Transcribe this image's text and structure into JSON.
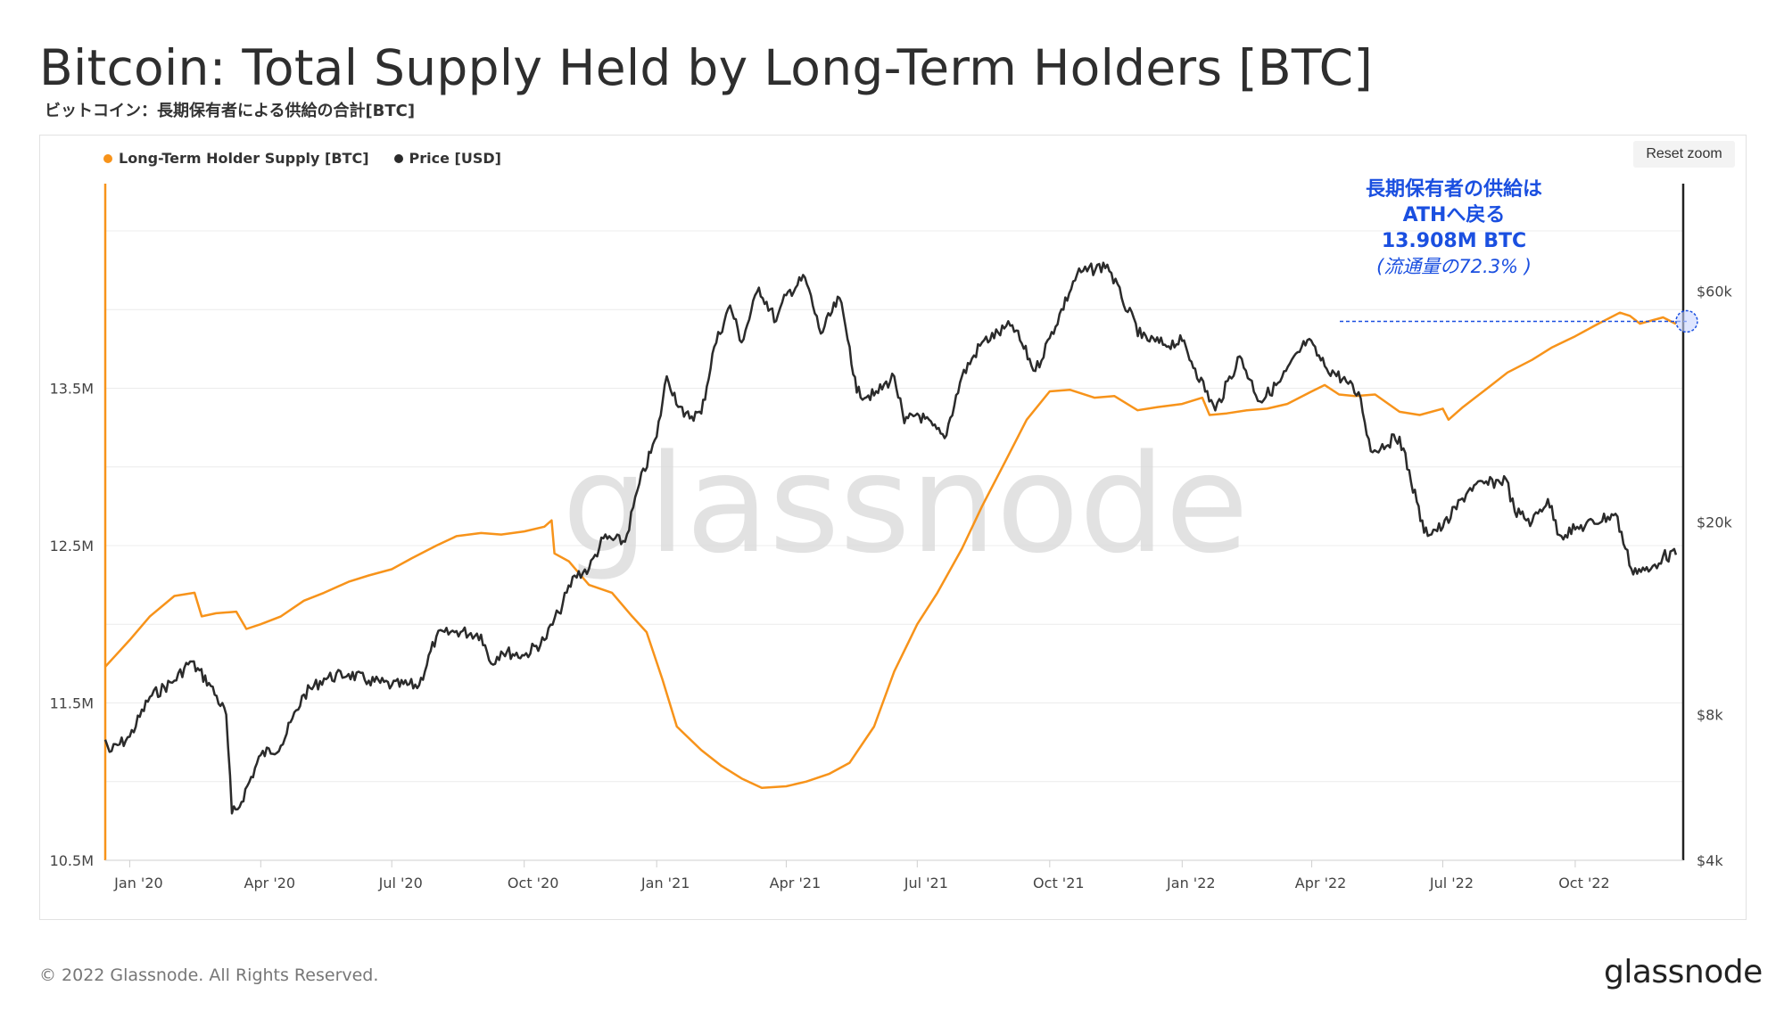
{
  "header": {
    "title": "Bitcoin: Total Supply Held by Long-Term Holders [BTC]",
    "subtitle": "ビットコイン：長期保有者による供給の合計[BTC]"
  },
  "toolbar": {
    "reset_zoom_label": "Reset zoom"
  },
  "legend": [
    {
      "label": "Long-Term Holder Supply [BTC]",
      "color": "#f7931a"
    },
    {
      "label": "Price [USD]",
      "color": "#2b2b2b"
    }
  ],
  "watermark": "glassnode",
  "annotation": {
    "line1": "長期保有者の供給は",
    "line2": "ATHへ戻る",
    "line3": "13.908M BTC",
    "note": "(流通量の72.3% )",
    "color": "#1a4fe0"
  },
  "footer": {
    "copyright": "© 2022 Glassnode. All Rights Reserved.",
    "logo": "glassnode"
  },
  "chart_data": {
    "type": "line",
    "title": "Bitcoin: Total Supply Held by Long-Term Holders [BTC]",
    "x_range": [
      "2019-12-15",
      "2022-12-15"
    ],
    "x_ticks": [
      {
        "date": "2020-01-01",
        "label": "Jan '20"
      },
      {
        "date": "2020-04-01",
        "label": "Apr '20"
      },
      {
        "date": "2020-07-01",
        "label": "Jul '20"
      },
      {
        "date": "2020-10-01",
        "label": "Oct '20"
      },
      {
        "date": "2021-01-01",
        "label": "Jan '21"
      },
      {
        "date": "2021-04-01",
        "label": "Apr '21"
      },
      {
        "date": "2021-07-01",
        "label": "Jul '21"
      },
      {
        "date": "2021-10-01",
        "label": "Oct '21"
      },
      {
        "date": "2022-01-01",
        "label": "Jan '22"
      },
      {
        "date": "2022-04-01",
        "label": "Apr '22"
      },
      {
        "date": "2022-07-01",
        "label": "Jul '22"
      },
      {
        "date": "2022-10-01",
        "label": "Oct '22"
      }
    ],
    "y_left": {
      "label": "Long-Term Holder Supply [BTC]",
      "range": [
        10.5,
        14.8
      ],
      "ticks": [
        {
          "value": 10.5,
          "label": "10.5M"
        },
        {
          "value": 11.5,
          "label": "11.5M"
        },
        {
          "value": 12.5,
          "label": "12.5M"
        },
        {
          "value": 13.5,
          "label": "13.5M"
        }
      ]
    },
    "y_right": {
      "label": "Price [USD]",
      "scale": "log",
      "range": [
        4000,
        100000
      ],
      "ticks": [
        {
          "value": 4000,
          "label": "$4k"
        },
        {
          "value": 8000,
          "label": "$8k"
        },
        {
          "value": 20000,
          "label": "$20k"
        },
        {
          "value": 60000,
          "label": "$60k"
        }
      ]
    },
    "series": [
      {
        "name": "Long-Term Holder Supply [BTC]",
        "axis": "left",
        "color": "#f7931a",
        "unit": "M BTC",
        "points": [
          [
            "2019-12-15",
            11.73
          ],
          [
            "2020-01-01",
            11.9
          ],
          [
            "2020-01-15",
            12.05
          ],
          [
            "2020-02-01",
            12.18
          ],
          [
            "2020-02-15",
            12.2
          ],
          [
            "2020-02-20",
            12.05
          ],
          [
            "2020-03-01",
            12.07
          ],
          [
            "2020-03-15",
            12.08
          ],
          [
            "2020-03-22",
            11.97
          ],
          [
            "2020-04-01",
            12.0
          ],
          [
            "2020-04-15",
            12.05
          ],
          [
            "2020-05-01",
            12.15
          ],
          [
            "2020-05-15",
            12.2
          ],
          [
            "2020-06-01",
            12.27
          ],
          [
            "2020-06-15",
            12.31
          ],
          [
            "2020-07-01",
            12.35
          ],
          [
            "2020-07-15",
            12.42
          ],
          [
            "2020-08-01",
            12.5
          ],
          [
            "2020-08-15",
            12.56
          ],
          [
            "2020-09-01",
            12.58
          ],
          [
            "2020-09-15",
            12.57
          ],
          [
            "2020-10-01",
            12.59
          ],
          [
            "2020-10-15",
            12.62
          ],
          [
            "2020-10-20",
            12.66
          ],
          [
            "2020-10-22",
            12.45
          ],
          [
            "2020-11-01",
            12.4
          ],
          [
            "2020-11-15",
            12.25
          ],
          [
            "2020-12-01",
            12.2
          ],
          [
            "2020-12-15",
            12.05
          ],
          [
            "2020-12-25",
            11.95
          ],
          [
            "2021-01-05",
            11.65
          ],
          [
            "2021-01-15",
            11.35
          ],
          [
            "2021-02-01",
            11.2
          ],
          [
            "2021-02-15",
            11.1
          ],
          [
            "2021-03-01",
            11.02
          ],
          [
            "2021-03-15",
            10.96
          ],
          [
            "2021-04-01",
            10.97
          ],
          [
            "2021-04-15",
            11.0
          ],
          [
            "2021-05-01",
            11.05
          ],
          [
            "2021-05-15",
            11.12
          ],
          [
            "2021-06-01",
            11.35
          ],
          [
            "2021-06-15",
            11.7
          ],
          [
            "2021-07-01",
            12.0
          ],
          [
            "2021-07-15",
            12.2
          ],
          [
            "2021-08-01",
            12.48
          ],
          [
            "2021-08-15",
            12.75
          ],
          [
            "2021-09-01",
            13.05
          ],
          [
            "2021-09-15",
            13.3
          ],
          [
            "2021-10-01",
            13.48
          ],
          [
            "2021-10-15",
            13.49
          ],
          [
            "2021-11-01",
            13.44
          ],
          [
            "2021-11-15",
            13.45
          ],
          [
            "2021-12-01",
            13.36
          ],
          [
            "2021-12-15",
            13.38
          ],
          [
            "2022-01-01",
            13.4
          ],
          [
            "2022-01-15",
            13.44
          ],
          [
            "2022-01-20",
            13.33
          ],
          [
            "2022-02-01",
            13.34
          ],
          [
            "2022-02-15",
            13.36
          ],
          [
            "2022-03-01",
            13.37
          ],
          [
            "2022-03-15",
            13.4
          ],
          [
            "2022-04-01",
            13.48
          ],
          [
            "2022-04-10",
            13.52
          ],
          [
            "2022-04-20",
            13.46
          ],
          [
            "2022-05-01",
            13.45
          ],
          [
            "2022-05-15",
            13.46
          ],
          [
            "2022-06-01",
            13.35
          ],
          [
            "2022-06-15",
            13.33
          ],
          [
            "2022-07-01",
            13.37
          ],
          [
            "2022-07-05",
            13.3
          ],
          [
            "2022-07-15",
            13.38
          ],
          [
            "2022-08-01",
            13.5
          ],
          [
            "2022-08-15",
            13.6
          ],
          [
            "2022-09-01",
            13.68
          ],
          [
            "2022-09-15",
            13.76
          ],
          [
            "2022-10-01",
            13.83
          ],
          [
            "2022-10-15",
            13.9
          ],
          [
            "2022-11-01",
            13.98
          ],
          [
            "2022-11-08",
            13.96
          ],
          [
            "2022-11-15",
            13.91
          ],
          [
            "2022-12-01",
            13.95
          ],
          [
            "2022-12-10",
            13.908
          ]
        ]
      },
      {
        "name": "Price [USD]",
        "axis": "right",
        "color": "#2b2b2b",
        "unit": "USD",
        "points": [
          [
            "2019-12-15",
            7100
          ],
          [
            "2019-12-18",
            6700
          ],
          [
            "2020-01-01",
            7200
          ],
          [
            "2020-01-15",
            8700
          ],
          [
            "2020-02-01",
            9400
          ],
          [
            "2020-02-12",
            10300
          ],
          [
            "2020-02-25",
            9300
          ],
          [
            "2020-03-08",
            8000
          ],
          [
            "2020-03-12",
            5000
          ],
          [
            "2020-03-16",
            5100
          ],
          [
            "2020-04-01",
            6600
          ],
          [
            "2020-04-15",
            6900
          ],
          [
            "2020-05-01",
            8800
          ],
          [
            "2020-05-15",
            9500
          ],
          [
            "2020-06-01",
            9700
          ],
          [
            "2020-06-15",
            9400
          ],
          [
            "2020-07-01",
            9200
          ],
          [
            "2020-07-20",
            9200
          ],
          [
            "2020-08-01",
            11600
          ],
          [
            "2020-08-15",
            11900
          ],
          [
            "2020-09-01",
            11700
          ],
          [
            "2020-09-08",
            10200
          ],
          [
            "2020-09-15",
            10800
          ],
          [
            "2020-10-01",
            10600
          ],
          [
            "2020-10-15",
            11400
          ],
          [
            "2020-10-25",
            13000
          ],
          [
            "2020-11-05",
            15500
          ],
          [
            "2020-11-15",
            16000
          ],
          [
            "2020-11-25",
            18500
          ],
          [
            "2020-12-10",
            18200
          ],
          [
            "2020-12-20",
            24000
          ],
          [
            "2021-01-01",
            30000
          ],
          [
            "2021-01-08",
            40000
          ],
          [
            "2021-01-20",
            33000
          ],
          [
            "2021-02-01",
            33500
          ],
          [
            "2021-02-10",
            46000
          ],
          [
            "2021-02-21",
            56000
          ],
          [
            "2021-03-01",
            47000
          ],
          [
            "2021-03-13",
            61000
          ],
          [
            "2021-03-25",
            52000
          ],
          [
            "2021-04-01",
            58800
          ],
          [
            "2021-04-14",
            64000
          ],
          [
            "2021-04-25",
            49000
          ],
          [
            "2021-05-08",
            58000
          ],
          [
            "2021-05-15",
            46000
          ],
          [
            "2021-05-20",
            37000
          ],
          [
            "2021-06-01",
            36500
          ],
          [
            "2021-06-15",
            40000
          ],
          [
            "2021-06-22",
            32000
          ],
          [
            "2021-07-01",
            33500
          ],
          [
            "2021-07-20",
            29800
          ],
          [
            "2021-08-01",
            40000
          ],
          [
            "2021-08-15",
            47000
          ],
          [
            "2021-09-05",
            51000
          ],
          [
            "2021-09-21",
            41000
          ],
          [
            "2021-10-01",
            48000
          ],
          [
            "2021-10-20",
            65000
          ],
          [
            "2021-11-10",
            68000
          ],
          [
            "2021-11-20",
            58000
          ],
          [
            "2021-12-04",
            48000
          ],
          [
            "2021-12-20",
            46500
          ],
          [
            "2022-01-01",
            47300
          ],
          [
            "2022-01-10",
            41500
          ],
          [
            "2022-01-24",
            34000
          ],
          [
            "2022-02-10",
            44000
          ],
          [
            "2022-02-24",
            35500
          ],
          [
            "2022-03-10",
            39000
          ],
          [
            "2022-03-29",
            47500
          ],
          [
            "2022-04-10",
            42000
          ],
          [
            "2022-04-25",
            39000
          ],
          [
            "2022-05-05",
            36000
          ],
          [
            "2022-05-12",
            28000
          ],
          [
            "2022-06-01",
            30000
          ],
          [
            "2022-06-13",
            22000
          ],
          [
            "2022-06-18",
            19000
          ],
          [
            "2022-07-01",
            19500
          ],
          [
            "2022-07-20",
            23500
          ],
          [
            "2022-08-14",
            24500
          ],
          [
            "2022-08-20",
            21000
          ],
          [
            "2022-09-01",
            20000
          ],
          [
            "2022-09-12",
            22300
          ],
          [
            "2022-09-20",
            18800
          ],
          [
            "2022-10-01",
            19300
          ],
          [
            "2022-10-29",
            20800
          ],
          [
            "2022-11-09",
            16000
          ],
          [
            "2022-11-21",
            15800
          ],
          [
            "2022-12-01",
            17000
          ],
          [
            "2022-12-10",
            17100
          ]
        ]
      }
    ]
  }
}
